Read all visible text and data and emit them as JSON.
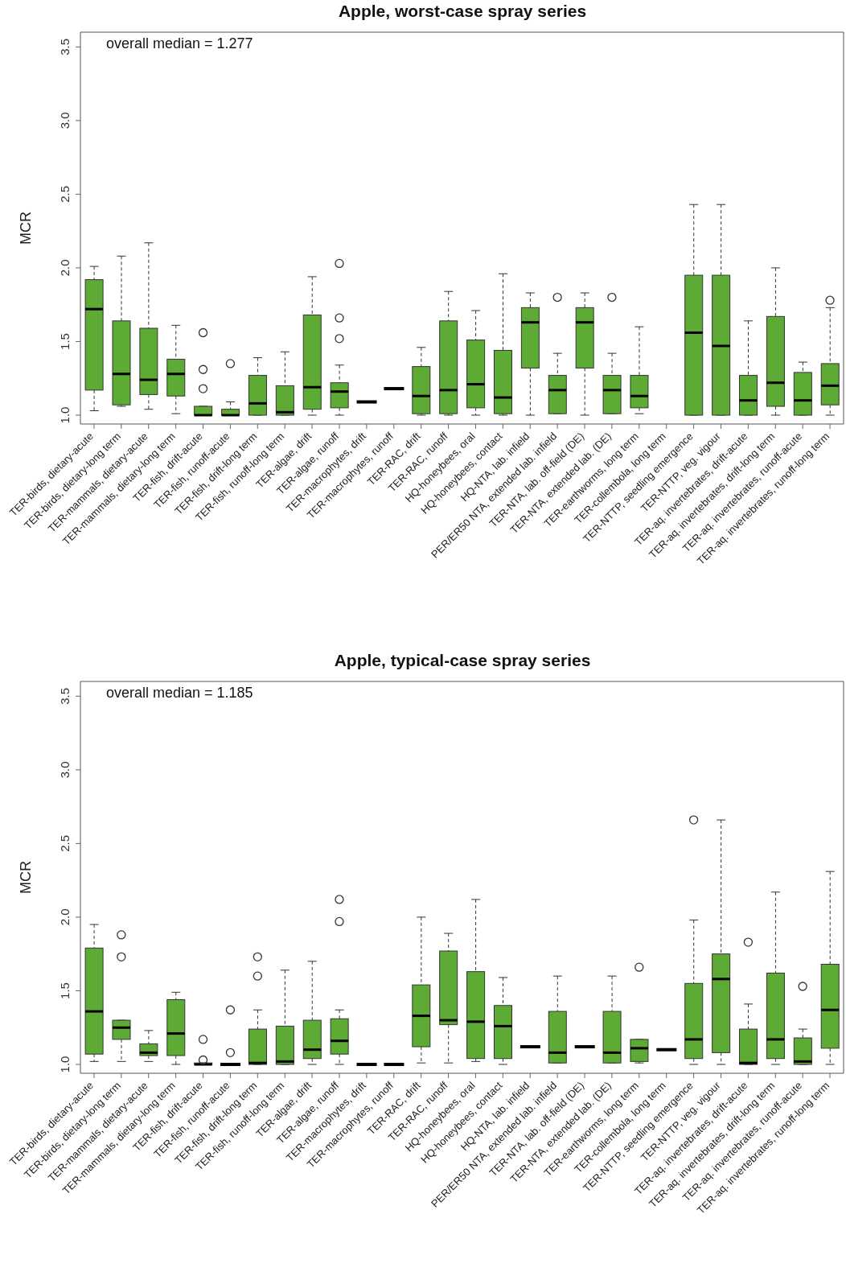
{
  "chart_data": [
    {
      "type": "box",
      "title": "Apple, worst-case spray series",
      "ylabel": "MCR",
      "color": "#5dab34",
      "ylim": [
        0.94,
        3.6
      ],
      "yticks": [
        {
          "value": 1,
          "label": "1.0"
        },
        {
          "value": 1.5,
          "label": "1.5"
        },
        {
          "value": 2,
          "label": "2.0"
        },
        {
          "value": 2.5,
          "label": "2.5"
        },
        {
          "value": 3,
          "label": "3.0"
        },
        {
          "value": 3.5,
          "label": "3.5"
        }
      ],
      "annotations": [
        "overall median = 1.277"
      ],
      "categories": [
        "TER-birds, dietary-acute",
        "TER-birds, dietary-long term",
        "TER-mammals, dietary-acute",
        "TER-mammals, dietary-long term",
        "TER-fish, drift-acute",
        "TER-fish, runoff-acute",
        "TER-fish, drift-long term",
        "TER-fish, runoff-long term",
        "TER-algae, drift",
        "TER-algae, runoff",
        "TER-macrophytes, drift",
        "TER-macrophytes, runoff",
        "TER-RAC, drift",
        "TER-RAC, runoff",
        "HQ-honeybees, oral",
        "HQ-honeybees, contact",
        "HQ-NTA, lab. infield",
        "PER/ER50 NTA, extended lab. infield",
        "TER-NTA, lab. off-field (DE)",
        "TER-NTA, extended lab. (DE)",
        "TER-earthworms, long term",
        "TER-collembola, long term",
        "TER-NTTP, seedling emergence",
        "TER-NTTP, veg. vigour",
        "TER-aq. invertebrates, drift-acute",
        "TER-aq. invertebrates, drift-long term",
        "TER-aq. invertebrates, runoff-acute",
        "TER-aq. invertebrates, runoff-long term"
      ],
      "boxes": [
        {
          "low": 1.03,
          "q1": 1.17,
          "median": 1.72,
          "q3": 1.92,
          "high": 2.01
        },
        {
          "low": 1.06,
          "q1": 1.07,
          "median": 1.28,
          "q3": 1.64,
          "high": 2.08
        },
        {
          "low": 1.04,
          "q1": 1.14,
          "median": 1.24,
          "q3": 1.59,
          "high": 2.17
        },
        {
          "low": 1.01,
          "q1": 1.13,
          "median": 1.28,
          "q3": 1.38,
          "high": 1.61
        },
        {
          "low": 1.0,
          "q1": 1.0,
          "median": 1.0,
          "q3": 1.06,
          "high": 1.06,
          "outliers": [
            1.56,
            1.31,
            1.18
          ]
        },
        {
          "low": 1.0,
          "q1": 1.0,
          "median": 1.0,
          "q3": 1.04,
          "high": 1.09,
          "outliers": [
            1.35
          ]
        },
        {
          "low": 1.0,
          "q1": 1.0,
          "median": 1.08,
          "q3": 1.27,
          "high": 1.39
        },
        {
          "low": 1.0,
          "q1": 1.0,
          "median": 1.02,
          "q3": 1.2,
          "high": 1.43
        },
        {
          "low": 1.0,
          "q1": 1.04,
          "median": 1.19,
          "q3": 1.68,
          "high": 1.94
        },
        {
          "low": 1.0,
          "q1": 1.05,
          "median": 1.16,
          "q3": 1.22,
          "high": 1.34,
          "outliers": [
            2.03,
            1.66,
            1.52
          ]
        },
        {
          "low": 1.09,
          "q1": 1.09,
          "median": 1.09,
          "q3": 1.09,
          "high": 1.09
        },
        {
          "low": 1.18,
          "q1": 1.18,
          "median": 1.18,
          "q3": 1.18,
          "high": 1.18
        },
        {
          "low": 1.0,
          "q1": 1.01,
          "median": 1.13,
          "q3": 1.33,
          "high": 1.46
        },
        {
          "low": 1.0,
          "q1": 1.01,
          "median": 1.17,
          "q3": 1.64,
          "high": 1.84
        },
        {
          "low": 1.0,
          "q1": 1.05,
          "median": 1.21,
          "q3": 1.51,
          "high": 1.71
        },
        {
          "low": 1.0,
          "q1": 1.01,
          "median": 1.12,
          "q3": 1.44,
          "high": 1.96
        },
        {
          "low": 1.0,
          "q1": 1.32,
          "median": 1.63,
          "q3": 1.73,
          "high": 1.83
        },
        {
          "low": 1.01,
          "q1": 1.01,
          "median": 1.17,
          "q3": 1.27,
          "high": 1.42,
          "outliers": [
            1.8
          ]
        },
        {
          "low": 1.0,
          "q1": 1.32,
          "median": 1.63,
          "q3": 1.73,
          "high": 1.83
        },
        {
          "low": 1.01,
          "q1": 1.01,
          "median": 1.17,
          "q3": 1.27,
          "high": 1.42,
          "outliers": [
            1.8
          ]
        },
        {
          "low": 1.01,
          "q1": 1.05,
          "median": 1.13,
          "q3": 1.27,
          "high": 1.6
        },
        null,
        {
          "low": 1.0,
          "q1": 1.0,
          "median": 1.56,
          "q3": 1.95,
          "high": 2.43
        },
        {
          "low": 1.0,
          "q1": 1.0,
          "median": 1.47,
          "q3": 1.95,
          "high": 2.43
        },
        {
          "low": 1.0,
          "q1": 1.0,
          "median": 1.1,
          "q3": 1.27,
          "high": 1.64
        },
        {
          "low": 1.0,
          "q1": 1.06,
          "median": 1.22,
          "q3": 1.67,
          "high": 2.0
        },
        {
          "low": 1.0,
          "q1": 1.0,
          "median": 1.1,
          "q3": 1.29,
          "high": 1.36
        },
        {
          "low": 1.0,
          "q1": 1.07,
          "median": 1.2,
          "q3": 1.35,
          "high": 1.73,
          "outliers": [
            1.78
          ]
        }
      ]
    },
    {
      "type": "box",
      "title": "Apple, typical-case spray series",
      "ylabel": "MCR",
      "color": "#5dab34",
      "ylim": [
        0.94,
        3.6
      ],
      "yticks": [
        {
          "value": 1,
          "label": "1.0"
        },
        {
          "value": 1.5,
          "label": "1.5"
        },
        {
          "value": 2,
          "label": "2.0"
        },
        {
          "value": 2.5,
          "label": "2.5"
        },
        {
          "value": 3,
          "label": "3.0"
        },
        {
          "value": 3.5,
          "label": "3.5"
        }
      ],
      "annotations": [
        "overall median = 1.185"
      ],
      "categories": [
        "TER-birds, dietary-acute",
        "TER-birds, dietary-long term",
        "TER-mammals, dietary-acute",
        "TER-mammals, dietary-long term",
        "TER-fish, drift-acute",
        "TER-fish, runoff-acute",
        "TER-fish, drift-long term",
        "TER-fish, runoff-long term",
        "TER-algae, drift",
        "TER-algae, runoff",
        "TER-macrophytes, drift",
        "TER-macrophytes, runoff",
        "TER-RAC, drift",
        "TER-RAC, runoff",
        "HQ-honeybees, oral",
        "HQ-honeybees, contact",
        "HQ-NTA, lab. infield",
        "PER/ER50 NTA, extended lab. infield",
        "TER-NTA, lab. off-field (DE)",
        "TER-NTA, extended lab. (DE)",
        "TER-earthworms, long term",
        "TER-collembola, long term",
        "TER-NTTP, seedling emergence",
        "TER-NTTP, veg. vigour",
        "TER-aq. invertebrates, drift-acute",
        "TER-aq. invertebrates, drift-long term",
        "TER-aq. invertebrates, runoff-acute",
        "TER-aq. invertebrates, runoff-long term"
      ],
      "boxes": [
        {
          "low": 1.02,
          "q1": 1.07,
          "median": 1.36,
          "q3": 1.79,
          "high": 1.95
        },
        {
          "low": 1.02,
          "q1": 1.17,
          "median": 1.25,
          "q3": 1.3,
          "high": 1.3,
          "outliers": [
            1.88,
            1.73
          ]
        },
        {
          "low": 1.02,
          "q1": 1.06,
          "median": 1.08,
          "q3": 1.14,
          "high": 1.23
        },
        {
          "low": 1.0,
          "q1": 1.06,
          "median": 1.21,
          "q3": 1.44,
          "high": 1.49
        },
        {
          "low": 1.0,
          "q1": 1.0,
          "median": 1.0,
          "q3": 1.01,
          "high": 1.01,
          "outliers": [
            1.17,
            1.03
          ]
        },
        {
          "low": 1.0,
          "q1": 1.0,
          "median": 1.0,
          "q3": 1.0,
          "high": 1.0,
          "outliers": [
            1.37,
            1.08
          ]
        },
        {
          "low": 1.0,
          "q1": 1.0,
          "median": 1.01,
          "q3": 1.24,
          "high": 1.37,
          "outliers": [
            1.73,
            1.6
          ]
        },
        {
          "low": 1.0,
          "q1": 1.0,
          "median": 1.02,
          "q3": 1.26,
          "high": 1.64
        },
        {
          "low": 1.0,
          "q1": 1.04,
          "median": 1.1,
          "q3": 1.3,
          "high": 1.7
        },
        {
          "low": 1.0,
          "q1": 1.07,
          "median": 1.16,
          "q3": 1.31,
          "high": 1.37,
          "outliers": [
            2.12,
            1.97
          ]
        },
        {
          "low": 1.0,
          "q1": 1.0,
          "median": 1.0,
          "q3": 1.0,
          "high": 1.0
        },
        {
          "low": 1.0,
          "q1": 1.0,
          "median": 1.0,
          "q3": 1.0,
          "high": 1.0
        },
        {
          "low": 1.01,
          "q1": 1.12,
          "median": 1.33,
          "q3": 1.54,
          "high": 2.0
        },
        {
          "low": 1.01,
          "q1": 1.27,
          "median": 1.3,
          "q3": 1.77,
          "high": 1.89
        },
        {
          "low": 1.02,
          "q1": 1.04,
          "median": 1.29,
          "q3": 1.63,
          "high": 2.12
        },
        {
          "low": 1.0,
          "q1": 1.04,
          "median": 1.26,
          "q3": 1.4,
          "high": 1.59
        },
        {
          "low": 1.12,
          "q1": 1.12,
          "median": 1.12,
          "q3": 1.12,
          "high": 1.12
        },
        {
          "low": 1.01,
          "q1": 1.01,
          "median": 1.08,
          "q3": 1.36,
          "high": 1.6
        },
        {
          "low": 1.12,
          "q1": 1.12,
          "median": 1.12,
          "q3": 1.12,
          "high": 1.12
        },
        {
          "low": 1.01,
          "q1": 1.01,
          "median": 1.08,
          "q3": 1.36,
          "high": 1.6
        },
        {
          "low": 1.01,
          "q1": 1.02,
          "median": 1.11,
          "q3": 1.17,
          "high": 1.17,
          "outliers": [
            1.66
          ]
        },
        {
          "low": 1.1,
          "q1": 1.1,
          "median": 1.1,
          "q3": 1.1,
          "high": 1.1
        },
        {
          "low": 1.0,
          "q1": 1.04,
          "median": 1.17,
          "q3": 1.55,
          "high": 1.98,
          "outliers": [
            2.66
          ]
        },
        {
          "low": 1.0,
          "q1": 1.08,
          "median": 1.58,
          "q3": 1.75,
          "high": 2.66
        },
        {
          "low": 1.0,
          "q1": 1.0,
          "median": 1.01,
          "q3": 1.24,
          "high": 1.41,
          "outliers": [
            1.83
          ]
        },
        {
          "low": 1.0,
          "q1": 1.04,
          "median": 1.17,
          "q3": 1.62,
          "high": 2.17
        },
        {
          "low": 1.0,
          "q1": 1.0,
          "median": 1.02,
          "q3": 1.18,
          "high": 1.24,
          "outliers": [
            1.53
          ]
        },
        {
          "low": 1.0,
          "q1": 1.11,
          "median": 1.37,
          "q3": 1.68,
          "high": 2.31
        }
      ]
    }
  ]
}
